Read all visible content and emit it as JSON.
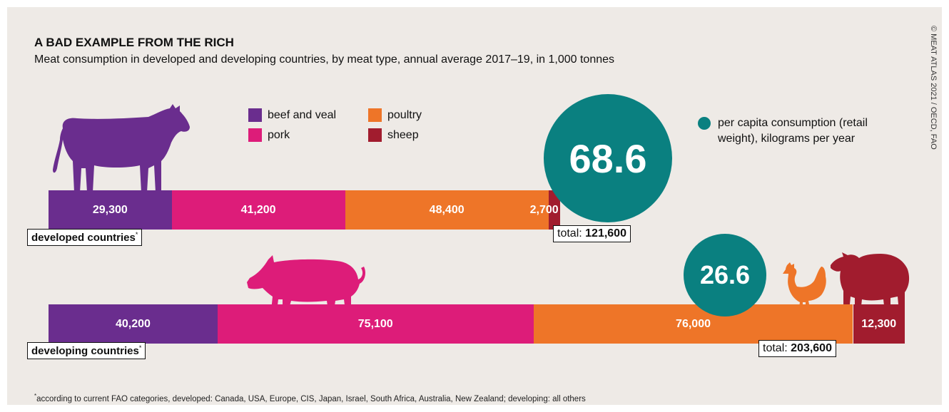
{
  "title": "A BAD EXAMPLE FROM THE RICH",
  "subtitle": "Meat consumption in developed and developing countries, by meat type, annual average 2017–19, in 1,000 tonnes",
  "credit": "© MEAT ATLAS 2021 / OECD, FAO",
  "footnote": {
    "marker": "*",
    "text": "according to current FAO categories, developed: Canada, USA, Europe, CIS, Japan, Israel, South Africa, Australia, New Zealand; developing: all others"
  },
  "per_capita_note": "per capita consumption (retail weight), kilograms per year",
  "colors": {
    "beef and veal": "#6a2d8e",
    "pork": "#dd1c79",
    "poultry": "#ee7528",
    "sheep": "#a11c2e",
    "per_capita": "#0a8080",
    "background": "#eeeae6"
  },
  "icons": [
    "cow-icon",
    "pig-icon",
    "chicken-icon",
    "sheep-icon"
  ],
  "chart_data": {
    "type": "bar",
    "orientation": "horizontal",
    "stacked": true,
    "categories": [
      "developed countries",
      "developing countries"
    ],
    "series": [
      {
        "name": "beef and veal",
        "values": [
          29300,
          40200
        ]
      },
      {
        "name": "pork",
        "values": [
          41200,
          75100
        ]
      },
      {
        "name": "poultry",
        "values": [
          48400,
          76000
        ]
      },
      {
        "name": "sheep",
        "values": [
          2700,
          12300
        ]
      }
    ],
    "labels": [
      [
        "29,300",
        "41,200",
        "48,400",
        "2,700"
      ],
      [
        "40,200",
        "75,100",
        "76,000",
        "12,300"
      ]
    ],
    "totals": [
      121600,
      203600
    ],
    "total_labels": [
      "121,600",
      "203,600"
    ],
    "total_prefix": "total:",
    "per_capita": [
      68.6,
      26.6
    ],
    "per_capita_labels": [
      "68.6",
      "26.6"
    ],
    "legend": [
      "beef and veal",
      "pork",
      "poultry",
      "sheep"
    ],
    "legend_position": "top-center",
    "grid": false
  }
}
